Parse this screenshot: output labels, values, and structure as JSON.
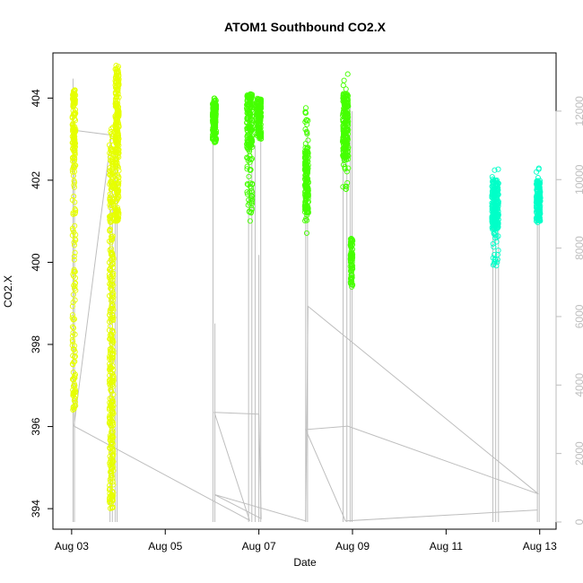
{
  "chart_data": {
    "type": "scatter",
    "title": "ATOM1 Southbound CO2.X",
    "xlabel": "Date",
    "ylabel": "CO2.X",
    "x_ticks": [
      "Aug 03",
      "Aug 05",
      "Aug 07",
      "Aug 09",
      "Aug 11",
      "Aug 13"
    ],
    "x_tick_days": [
      3,
      5,
      7,
      9,
      11,
      13
    ],
    "xlim_days": [
      2.6,
      13.35
    ],
    "y_left_ticks": [
      394,
      396,
      398,
      400,
      402,
      404
    ],
    "ylim_left": [
      393.5,
      405.1
    ],
    "y_right_ticks": [
      0,
      2000,
      4000,
      6000,
      8000,
      10000,
      12000
    ],
    "ylim_right": [
      -210,
      13700
    ],
    "grid": false,
    "legend": "none",
    "colors": {
      "yellow": "#e6ff00",
      "green": "#45ff00",
      "teal": "#00ffc8",
      "secondary_line": "#bebebe",
      "axis": "#000000",
      "right_axis": "#bebebe"
    },
    "scatter_clusters": [
      {
        "day": 3.05,
        "width": 0.07,
        "ymin": 396.4,
        "ymax": 404.4,
        "n": 240,
        "color": "yellow",
        "bands": [
          [
            402.3,
            404.2,
            0.55
          ],
          [
            397.3,
            402.3,
            0.3
          ],
          [
            396.4,
            397.3,
            0.15
          ]
        ]
      },
      {
        "day": 3.85,
        "width": 0.09,
        "ymin": 393.6,
        "ymax": 403.3,
        "n": 380,
        "color": "yellow",
        "bands": [
          [
            398.0,
            403.3,
            0.5
          ],
          [
            394.0,
            398.0,
            0.5
          ]
        ]
      },
      {
        "day": 3.97,
        "width": 0.08,
        "ymin": 401.0,
        "ymax": 404.8,
        "n": 260,
        "color": "yellow",
        "bands": [
          [
            403.0,
            404.8,
            0.55
          ],
          [
            401.0,
            403.0,
            0.45
          ]
        ]
      },
      {
        "day": 6.05,
        "width": 0.08,
        "ymin": 402.7,
        "ymax": 404.0,
        "n": 160,
        "color": "green",
        "bands": [
          [
            402.9,
            404.0,
            1.0
          ]
        ]
      },
      {
        "day": 6.8,
        "width": 0.12,
        "ymin": 401.0,
        "ymax": 404.1,
        "n": 200,
        "color": "green",
        "bands": [
          [
            402.8,
            404.1,
            0.75
          ],
          [
            401.0,
            402.8,
            0.25
          ]
        ]
      },
      {
        "day": 7.0,
        "width": 0.1,
        "ymin": 403.0,
        "ymax": 404.0,
        "n": 160,
        "color": "green",
        "bands": [
          [
            403.0,
            404.0,
            1.0
          ]
        ]
      },
      {
        "day": 8.02,
        "width": 0.08,
        "ymin": 400.6,
        "ymax": 403.8,
        "n": 180,
        "color": "green",
        "bands": [
          [
            401.2,
            402.8,
            0.8
          ],
          [
            400.6,
            403.8,
            0.2
          ]
        ]
      },
      {
        "day": 8.85,
        "width": 0.12,
        "ymin": 401.7,
        "ymax": 404.6,
        "n": 240,
        "color": "green",
        "bands": [
          [
            402.5,
            404.1,
            0.8
          ],
          [
            401.7,
            404.6,
            0.2
          ]
        ]
      },
      {
        "day": 8.98,
        "width": 0.05,
        "ymin": 399.4,
        "ymax": 400.6,
        "n": 80,
        "color": "green",
        "bands": [
          [
            399.4,
            400.6,
            1.0
          ]
        ]
      },
      {
        "day": 12.05,
        "width": 0.14,
        "ymin": 399.9,
        "ymax": 402.3,
        "n": 260,
        "color": "teal",
        "bands": [
          [
            400.8,
            402.0,
            0.8
          ],
          [
            399.9,
            402.3,
            0.2
          ]
        ]
      },
      {
        "day": 12.97,
        "width": 0.09,
        "ymin": 400.9,
        "ymax": 402.4,
        "n": 160,
        "color": "teal",
        "bands": [
          [
            401.0,
            402.0,
            0.85
          ],
          [
            400.9,
            402.4,
            0.15
          ]
        ]
      }
    ],
    "secondary_series": {
      "name": "",
      "axis": "right",
      "spikes": [
        {
          "day": 3.03,
          "lo": 0,
          "hi": 12950
        },
        {
          "day": 3.06,
          "lo": 0,
          "hi": 11500
        },
        {
          "day": 3.82,
          "lo": 0,
          "hi": 10300
        },
        {
          "day": 3.87,
          "lo": 0,
          "hi": 9800
        },
        {
          "day": 3.93,
          "lo": 0,
          "hi": 12300
        },
        {
          "day": 3.97,
          "lo": 0,
          "hi": 11900
        },
        {
          "day": 6.02,
          "lo": 0,
          "hi": 11500
        },
        {
          "day": 6.06,
          "lo": 0,
          "hi": 5800
        },
        {
          "day": 6.78,
          "lo": 0,
          "hi": 11300
        },
        {
          "day": 6.85,
          "lo": 0,
          "hi": 10500
        },
        {
          "day": 6.92,
          "lo": 0,
          "hi": 11000
        },
        {
          "day": 7.0,
          "lo": 0,
          "hi": 7800
        },
        {
          "day": 7.04,
          "lo": 0,
          "hi": 11800
        },
        {
          "day": 8.0,
          "lo": 0,
          "hi": 10800
        },
        {
          "day": 8.04,
          "lo": 0,
          "hi": 11500
        },
        {
          "day": 8.8,
          "lo": 0,
          "hi": 11200
        },
        {
          "day": 8.88,
          "lo": 0,
          "hi": 11700
        },
        {
          "day": 8.95,
          "lo": 0,
          "hi": 12200
        },
        {
          "day": 8.99,
          "lo": 0,
          "hi": 12000
        },
        {
          "day": 12.0,
          "lo": 0,
          "hi": 9800
        },
        {
          "day": 12.06,
          "lo": 0,
          "hi": 9200
        },
        {
          "day": 12.12,
          "lo": 0,
          "hi": 9500
        },
        {
          "day": 12.95,
          "lo": 0,
          "hi": 9800
        },
        {
          "day": 12.99,
          "lo": 0,
          "hi": 9100
        }
      ],
      "path": [
        {
          "day": 3.0,
          "value": 11450
        },
        {
          "day": 3.85,
          "value": 11300
        },
        {
          "day": 3.05,
          "value": 2800
        },
        {
          "day": 6.8,
          "value": 50
        },
        {
          "day": 6.05,
          "value": 3200
        },
        {
          "day": 7.0,
          "value": 3150
        },
        {
          "day": 7.05,
          "value": 100
        },
        {
          "day": 6.05,
          "value": 800
        },
        {
          "day": 8.0,
          "value": 30
        },
        {
          "day": 8.05,
          "value": 6300
        },
        {
          "day": 12.97,
          "value": 820
        },
        {
          "day": 8.9,
          "value": 2800
        },
        {
          "day": 8.0,
          "value": 2700
        },
        {
          "day": 8.85,
          "value": 30
        },
        {
          "day": 12.05,
          "value": 280
        },
        {
          "day": 12.95,
          "value": 350
        }
      ]
    }
  }
}
